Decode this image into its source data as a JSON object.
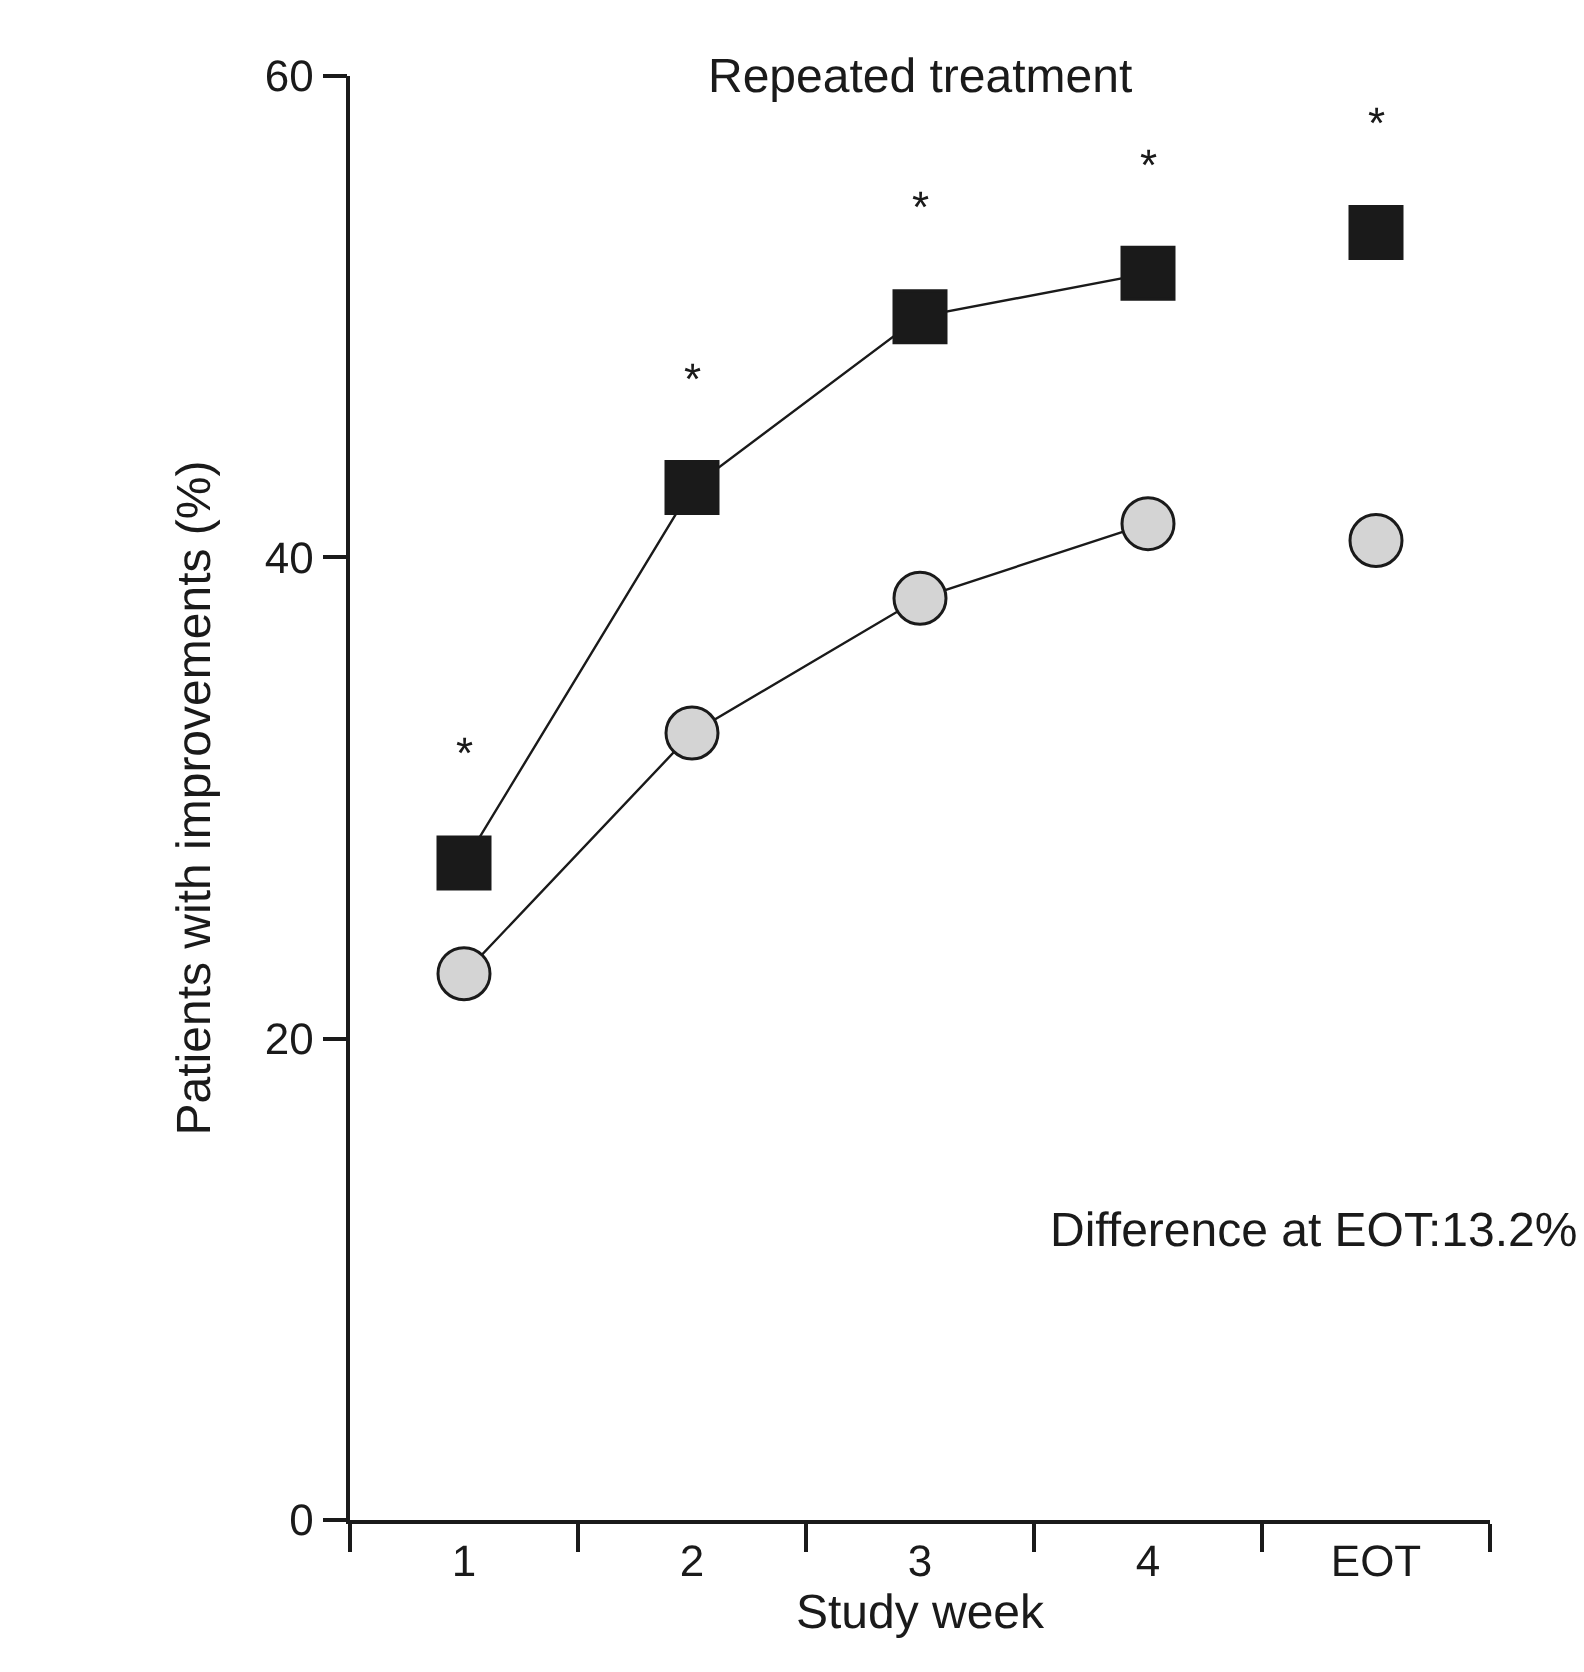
{
  "chart_data": {
    "type": "line",
    "title": "Repeated treatment",
    "xlabel": "Study week",
    "ylabel": "Patients with improvements (%)",
    "categories": [
      "1",
      "2",
      "3",
      "4",
      "EOT"
    ],
    "series": [
      {
        "x": [
          "1",
          "2",
          "3",
          "4"
        ],
        "values": [
          27.3,
          42.9,
          50.0,
          51.8
        ],
        "color": "#1a1a1a",
        "marker": "square"
      },
      {
        "type": "scatter",
        "x": [
          "EOT"
        ],
        "values": [
          53.5
        ],
        "color": "#1a1a1a",
        "marker": "square"
      },
      {
        "x": [
          "1",
          "2",
          "3",
          "4"
        ],
        "values": [
          22.7,
          32.7,
          38.3,
          41.4
        ],
        "color": "#d4d4d4",
        "marker": "circle"
      },
      {
        "type": "scatter",
        "x": [
          "EOT"
        ],
        "values": [
          40.7
        ],
        "color": "#d4d4d4",
        "marker": "circle"
      }
    ],
    "ylim": [
      0,
      60
    ],
    "yticks": [
      0,
      20,
      40,
      60
    ],
    "grid": false,
    "annotations": [
      {
        "text": "*",
        "x": "1",
        "y": 27.3
      },
      {
        "text": "*",
        "x": "2",
        "y": 42.9
      },
      {
        "text": "*",
        "x": "3",
        "y": 50.0
      },
      {
        "text": "*",
        "x": "4",
        "y": 51.8
      },
      {
        "text": "*",
        "x": "EOT",
        "y": 53.5
      },
      "Difference at EOT:13.2%"
    ]
  }
}
